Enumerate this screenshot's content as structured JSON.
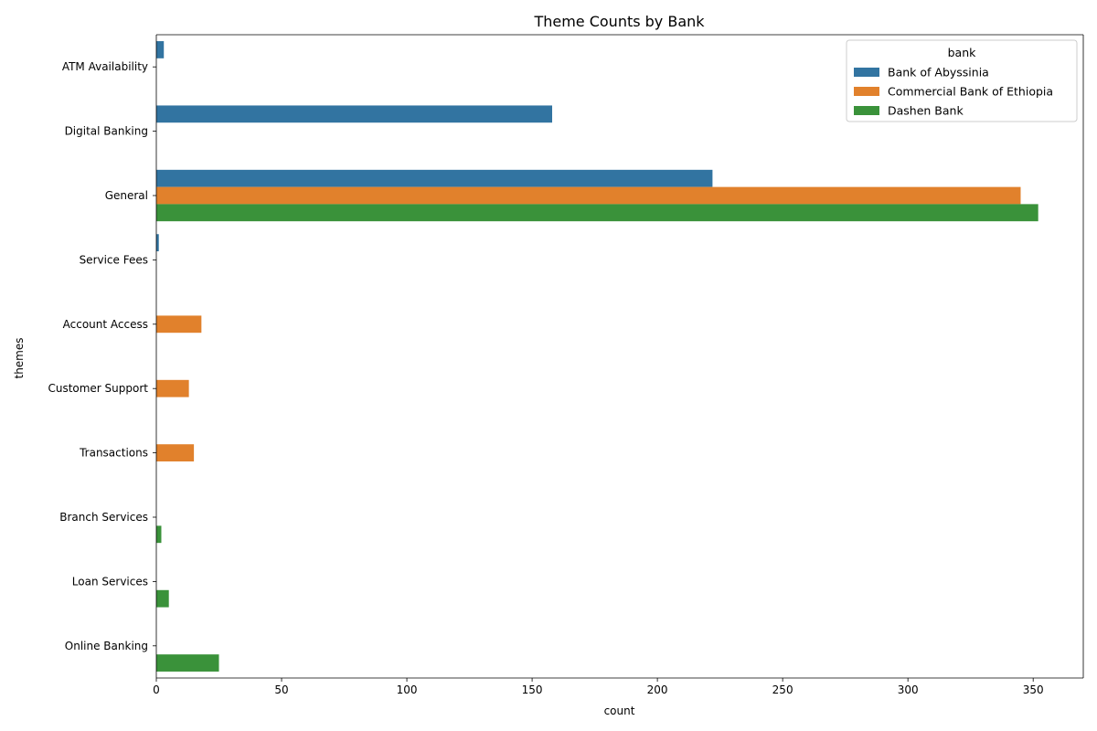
{
  "chart_data": {
    "type": "bar",
    "orientation": "horizontal",
    "title": "Theme Counts by Bank",
    "xlabel": "count",
    "ylabel": "themes",
    "xlim": [
      0,
      370
    ],
    "x_ticks": [
      0,
      50,
      100,
      150,
      200,
      250,
      300,
      350
    ],
    "categories": [
      "ATM Availability",
      "Digital Banking",
      "General",
      "Service Fees",
      "Account Access",
      "Customer Support",
      "Transactions",
      "Branch Services",
      "Loan Services",
      "Online Banking"
    ],
    "legend_title": "bank",
    "legend_position": "top-right",
    "grid": false,
    "series": [
      {
        "name": "Bank of Abyssinia",
        "color": "#3274a1",
        "values": [
          3,
          158,
          222,
          1,
          0,
          0,
          0,
          0,
          0,
          0
        ]
      },
      {
        "name": "Commercial Bank of Ethiopia",
        "color": "#e1812c",
        "values": [
          0,
          0,
          345,
          0,
          18,
          13,
          15,
          0,
          0,
          0
        ]
      },
      {
        "name": "Dashen Bank",
        "color": "#3a923a",
        "values": [
          0,
          0,
          352,
          0,
          0,
          0,
          0,
          2,
          5,
          25
        ]
      }
    ]
  }
}
